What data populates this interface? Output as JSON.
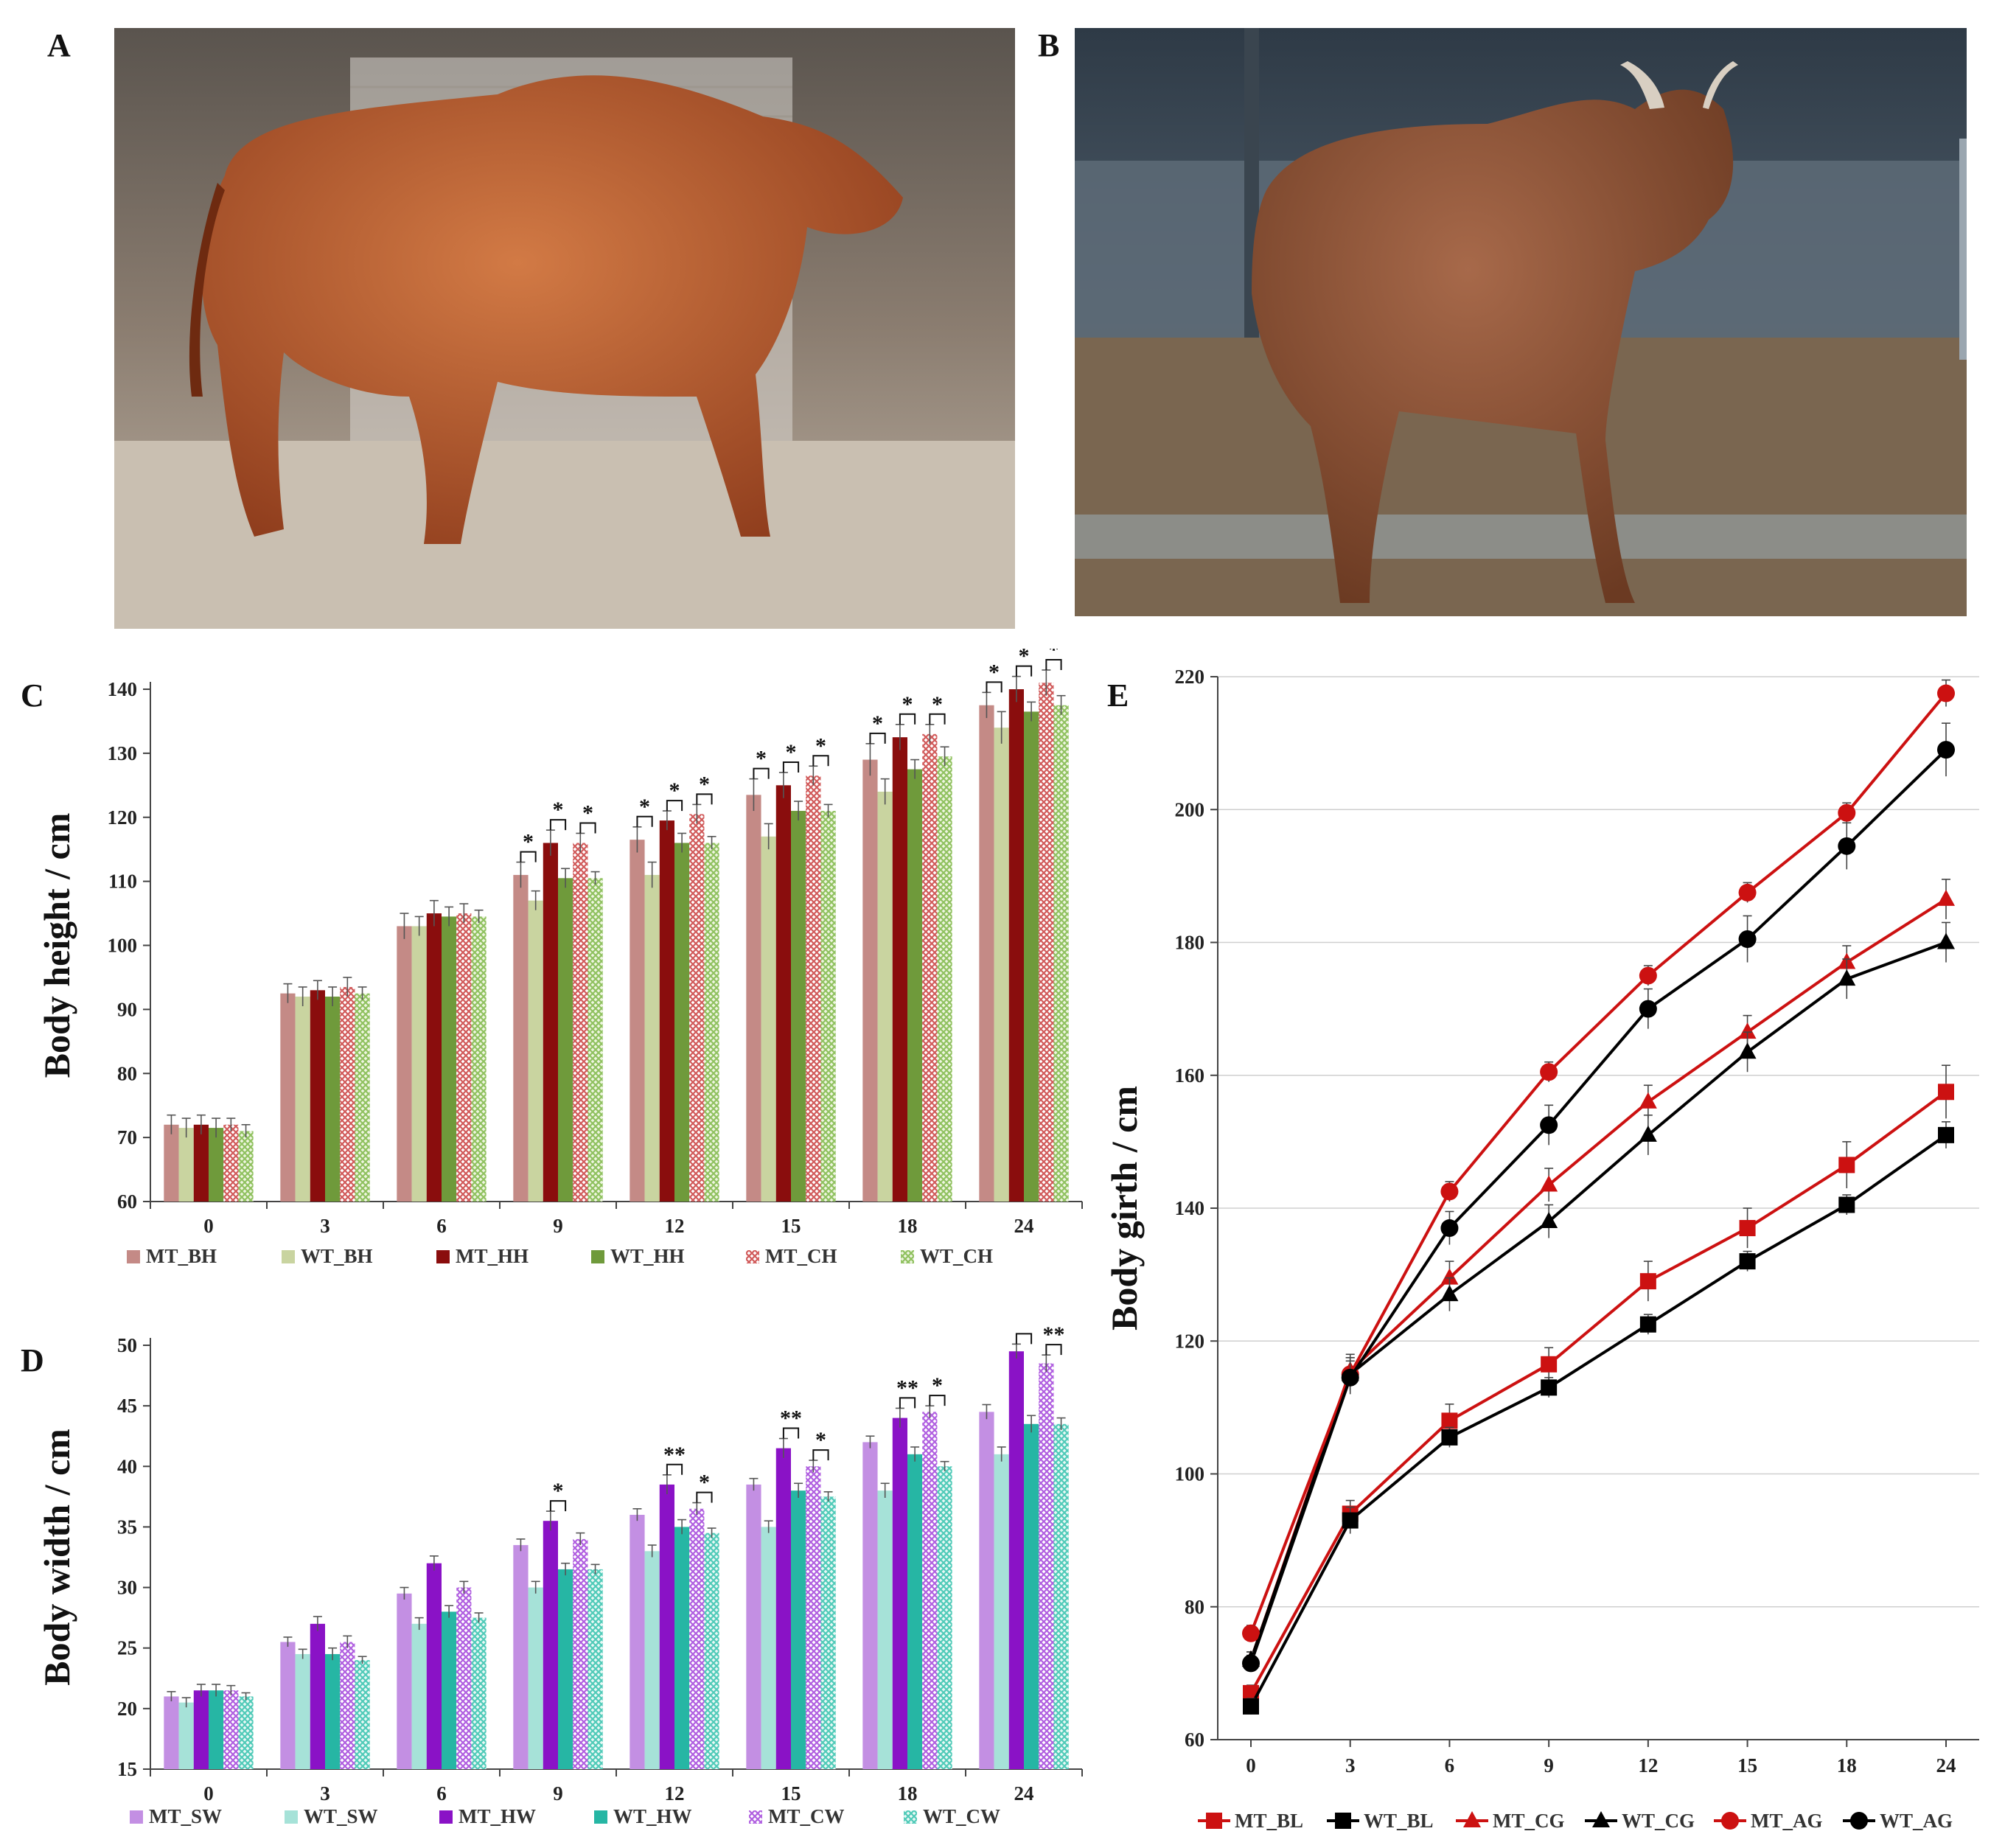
{
  "panels": {
    "a": "A",
    "b": "B",
    "c": "C",
    "d": "D",
    "e": "E"
  },
  "photos": {
    "a": {
      "icon": "bull-side-view-photo",
      "colors": {
        "bg": "#8b7d70",
        "floor": "#bfb4a6",
        "coat": "#b65a2c"
      }
    },
    "b": {
      "icon": "bull-pen-photo",
      "colors": {
        "bg": "#4b5966",
        "floor": "#6e5c48",
        "coat": "#8a5236"
      }
    }
  },
  "chart_data": [
    {
      "panel": "C",
      "type": "bar",
      "ylabel": "Body height / cm",
      "ylim": [
        60,
        140
      ],
      "yticks": [
        60,
        70,
        80,
        90,
        100,
        110,
        120,
        130,
        140
      ],
      "categories": [
        "0",
        "3",
        "6",
        "9",
        "12",
        "15",
        "18",
        "24"
      ],
      "series": [
        {
          "name": "MT_BH",
          "color": "#c48a86",
          "pattern": "solid",
          "values": [
            72,
            92.5,
            103,
            111,
            116.5,
            123.5,
            129,
            137.5
          ],
          "errors": [
            1.5,
            1.5,
            2,
            2,
            2,
            2.5,
            2.5,
            2
          ]
        },
        {
          "name": "WT_BH",
          "color": "#c9d4a0",
          "pattern": "solid",
          "values": [
            71.5,
            92,
            103,
            107,
            111,
            117,
            124,
            134
          ],
          "errors": [
            1.5,
            1.5,
            1.5,
            1.5,
            2,
            2,
            2,
            2.5
          ]
        },
        {
          "name": "MT_HH",
          "color": "#8a0d0d",
          "pattern": "solid",
          "values": [
            72,
            93,
            105,
            116,
            119.5,
            125,
            132.5,
            140
          ],
          "errors": [
            1.5,
            1.5,
            2,
            2,
            1.5,
            2,
            2,
            2
          ]
        },
        {
          "name": "WT_HH",
          "color": "#6f9a3b",
          "pattern": "solid",
          "values": [
            71.5,
            92,
            104.5,
            110.5,
            116,
            121,
            127.5,
            136.5
          ],
          "errors": [
            1.5,
            1.5,
            1.5,
            1.5,
            1.5,
            1.5,
            1.5,
            1.5
          ]
        },
        {
          "name": "MT_CH",
          "color": "#d88080",
          "pattern": "hatch-red",
          "values": [
            72,
            93.5,
            105,
            116,
            120.5,
            126.5,
            133,
            141
          ],
          "errors": [
            1,
            1.5,
            1.5,
            1.5,
            1.5,
            1.5,
            1.5,
            2
          ]
        },
        {
          "name": "WT_CH",
          "color": "#a7cc7a",
          "pattern": "hatch-green",
          "values": [
            71,
            92.5,
            104.5,
            110.5,
            116,
            121,
            129.5,
            137.5
          ],
          "errors": [
            1,
            1,
            1,
            1,
            1,
            1,
            1.5,
            1.5
          ]
        }
      ],
      "annotations": [
        {
          "category": "9",
          "between": [
            "MT_BH",
            "WT_BH"
          ],
          "label": "*"
        },
        {
          "category": "9",
          "between": [
            "MT_HH",
            "WT_HH"
          ],
          "label": "*"
        },
        {
          "category": "9",
          "between": [
            "MT_CH",
            "WT_CH"
          ],
          "label": "*"
        },
        {
          "category": "12",
          "between": [
            "MT_BH",
            "WT_BH"
          ],
          "label": "*"
        },
        {
          "category": "12",
          "between": [
            "MT_HH",
            "WT_HH"
          ],
          "label": "*"
        },
        {
          "category": "12",
          "between": [
            "MT_CH",
            "WT_CH"
          ],
          "label": "*"
        },
        {
          "category": "15",
          "between": [
            "MT_BH",
            "WT_BH"
          ],
          "label": "*"
        },
        {
          "category": "15",
          "between": [
            "MT_HH",
            "WT_HH"
          ],
          "label": "*"
        },
        {
          "category": "15",
          "between": [
            "MT_CH",
            "WT_CH"
          ],
          "label": "*"
        },
        {
          "category": "18",
          "between": [
            "MT_BH",
            "WT_BH"
          ],
          "label": "*"
        },
        {
          "category": "18",
          "between": [
            "MT_HH",
            "WT_HH"
          ],
          "label": "*"
        },
        {
          "category": "18",
          "between": [
            "MT_CH",
            "WT_CH"
          ],
          "label": "*"
        },
        {
          "category": "24",
          "between": [
            "MT_BH",
            "WT_BH"
          ],
          "label": "*"
        },
        {
          "category": "24",
          "between": [
            "MT_HH",
            "WT_HH"
          ],
          "label": "*"
        },
        {
          "category": "24",
          "between": [
            "MT_CH",
            "WT_CH"
          ],
          "label": "*"
        }
      ],
      "legend_position": "bottom",
      "grid": false
    },
    {
      "panel": "D",
      "type": "bar",
      "ylabel": "Body width / cm",
      "ylim": [
        15,
        50
      ],
      "yticks": [
        15,
        20,
        25,
        30,
        35,
        40,
        45,
        50
      ],
      "categories": [
        "0",
        "3",
        "6",
        "9",
        "12",
        "15",
        "18",
        "24"
      ],
      "series": [
        {
          "name": "MT_SW",
          "color": "#c38fe3",
          "pattern": "solid",
          "values": [
            21,
            25.5,
            29.5,
            33.5,
            36,
            38.5,
            42,
            44.5
          ],
          "errors": [
            0.4,
            0.4,
            0.5,
            0.5,
            0.5,
            0.5,
            0.5,
            0.6
          ]
        },
        {
          "name": "WT_SW",
          "color": "#a6e2d8",
          "pattern": "solid",
          "values": [
            20.5,
            24.5,
            27,
            30,
            33,
            35,
            38,
            41
          ],
          "errors": [
            0.4,
            0.4,
            0.5,
            0.5,
            0.5,
            0.5,
            0.6,
            0.6
          ]
        },
        {
          "name": "MT_HW",
          "color": "#8a12c6",
          "pattern": "solid",
          "values": [
            21.5,
            27,
            32,
            35.5,
            38.5,
            41.5,
            44,
            49.5
          ],
          "errors": [
            0.5,
            0.6,
            0.6,
            0.8,
            0.8,
            0.8,
            0.8,
            0.6
          ]
        },
        {
          "name": "WT_HW",
          "color": "#26b6a4",
          "pattern": "solid",
          "values": [
            21.5,
            24.5,
            28,
            31.5,
            35,
            38,
            41,
            43.5
          ],
          "errors": [
            0.5,
            0.5,
            0.5,
            0.5,
            0.6,
            0.6,
            0.6,
            0.7
          ]
        },
        {
          "name": "MT_CW",
          "color": "#c07ee8",
          "pattern": "hatch-purple",
          "values": [
            21.5,
            25.5,
            30,
            34,
            36.5,
            40,
            44.5,
            48.5
          ],
          "errors": [
            0.4,
            0.5,
            0.5,
            0.5,
            0.5,
            0.5,
            0.5,
            0.7
          ]
        },
        {
          "name": "WT_CW",
          "color": "#8edbd0",
          "pattern": "hatch-teal",
          "values": [
            21,
            24,
            27.5,
            31.5,
            34.5,
            37.5,
            40,
            43.5
          ],
          "errors": [
            0.3,
            0.3,
            0.4,
            0.4,
            0.4,
            0.4,
            0.4,
            0.5
          ]
        }
      ],
      "annotations": [
        {
          "category": "9",
          "between": [
            "MT_HW",
            "WT_HW"
          ],
          "label": "*"
        },
        {
          "category": "12",
          "between": [
            "MT_HW",
            "WT_HW"
          ],
          "label": "**"
        },
        {
          "category": "12",
          "between": [
            "MT_CW",
            "WT_CW"
          ],
          "label": "*"
        },
        {
          "category": "15",
          "between": [
            "MT_HW",
            "WT_HW"
          ],
          "label": "**"
        },
        {
          "category": "15",
          "between": [
            "MT_CW",
            "WT_CW"
          ],
          "label": "*"
        },
        {
          "category": "18",
          "between": [
            "MT_HW",
            "WT_HW"
          ],
          "label": "**"
        },
        {
          "category": "18",
          "between": [
            "MT_CW",
            "WT_CW"
          ],
          "label": "*"
        },
        {
          "category": "24",
          "between": [
            "MT_HW",
            "WT_HW"
          ],
          "label": "**"
        },
        {
          "category": "24",
          "between": [
            "MT_CW",
            "WT_CW"
          ],
          "label": "**"
        }
      ],
      "legend_position": "bottom",
      "grid": false
    },
    {
      "panel": "E",
      "type": "line",
      "ylabel": "Body girth / cm",
      "ylim": [
        60,
        220
      ],
      "yticks": [
        60,
        80,
        100,
        120,
        140,
        160,
        180,
        200,
        220
      ],
      "x": [
        "0",
        "3",
        "6",
        "9",
        "12",
        "15",
        "18",
        "24"
      ],
      "series": [
        {
          "name": "MT_BL",
          "color": "#cc1111",
          "marker": "square",
          "values": [
            67,
            94,
            108,
            116.5,
            129,
            137,
            146.5,
            157.5
          ],
          "errors": [
            1.2,
            2,
            2.5,
            2.5,
            3,
            3,
            3.5,
            4
          ]
        },
        {
          "name": "WT_BL",
          "color": "#000000",
          "marker": "square",
          "values": [
            65,
            93,
            105.5,
            113,
            122.5,
            132,
            140.5,
            151
          ],
          "errors": [
            1.2,
            2,
            1.5,
            1.5,
            1.5,
            1.5,
            1.5,
            2
          ]
        },
        {
          "name": "MT_CG",
          "color": "#cc1111",
          "marker": "triangle",
          "values": [
            72,
            115.5,
            129.5,
            143.5,
            156,
            166.5,
            177,
            186.5
          ],
          "errors": [
            1.2,
            2.5,
            2.5,
            2.5,
            2.5,
            2.5,
            2.5,
            3
          ]
        },
        {
          "name": "WT_CG",
          "color": "#000000",
          "marker": "triangle",
          "values": [
            72,
            115,
            127,
            138,
            151,
            163.5,
            174.5,
            180
          ],
          "errors": [
            1.2,
            2.5,
            2.5,
            2.5,
            3,
            3,
            3,
            3
          ]
        },
        {
          "name": "MT_AG",
          "color": "#cc1111",
          "marker": "circle",
          "values": [
            76,
            115,
            142.5,
            160.5,
            175,
            187.5,
            199.5,
            217.5
          ],
          "errors": [
            1.2,
            2.5,
            1.5,
            1.5,
            1.5,
            1.5,
            1.5,
            2
          ]
        },
        {
          "name": "WT_AG",
          "color": "#000000",
          "marker": "circle",
          "values": [
            71.5,
            114.5,
            137,
            152.5,
            170,
            180.5,
            194.5,
            209
          ],
          "errors": [
            1.2,
            2.5,
            2.5,
            3,
            3,
            3.5,
            3.5,
            4
          ]
        }
      ],
      "legend_position": "bottom",
      "grid": "horizontal"
    }
  ]
}
